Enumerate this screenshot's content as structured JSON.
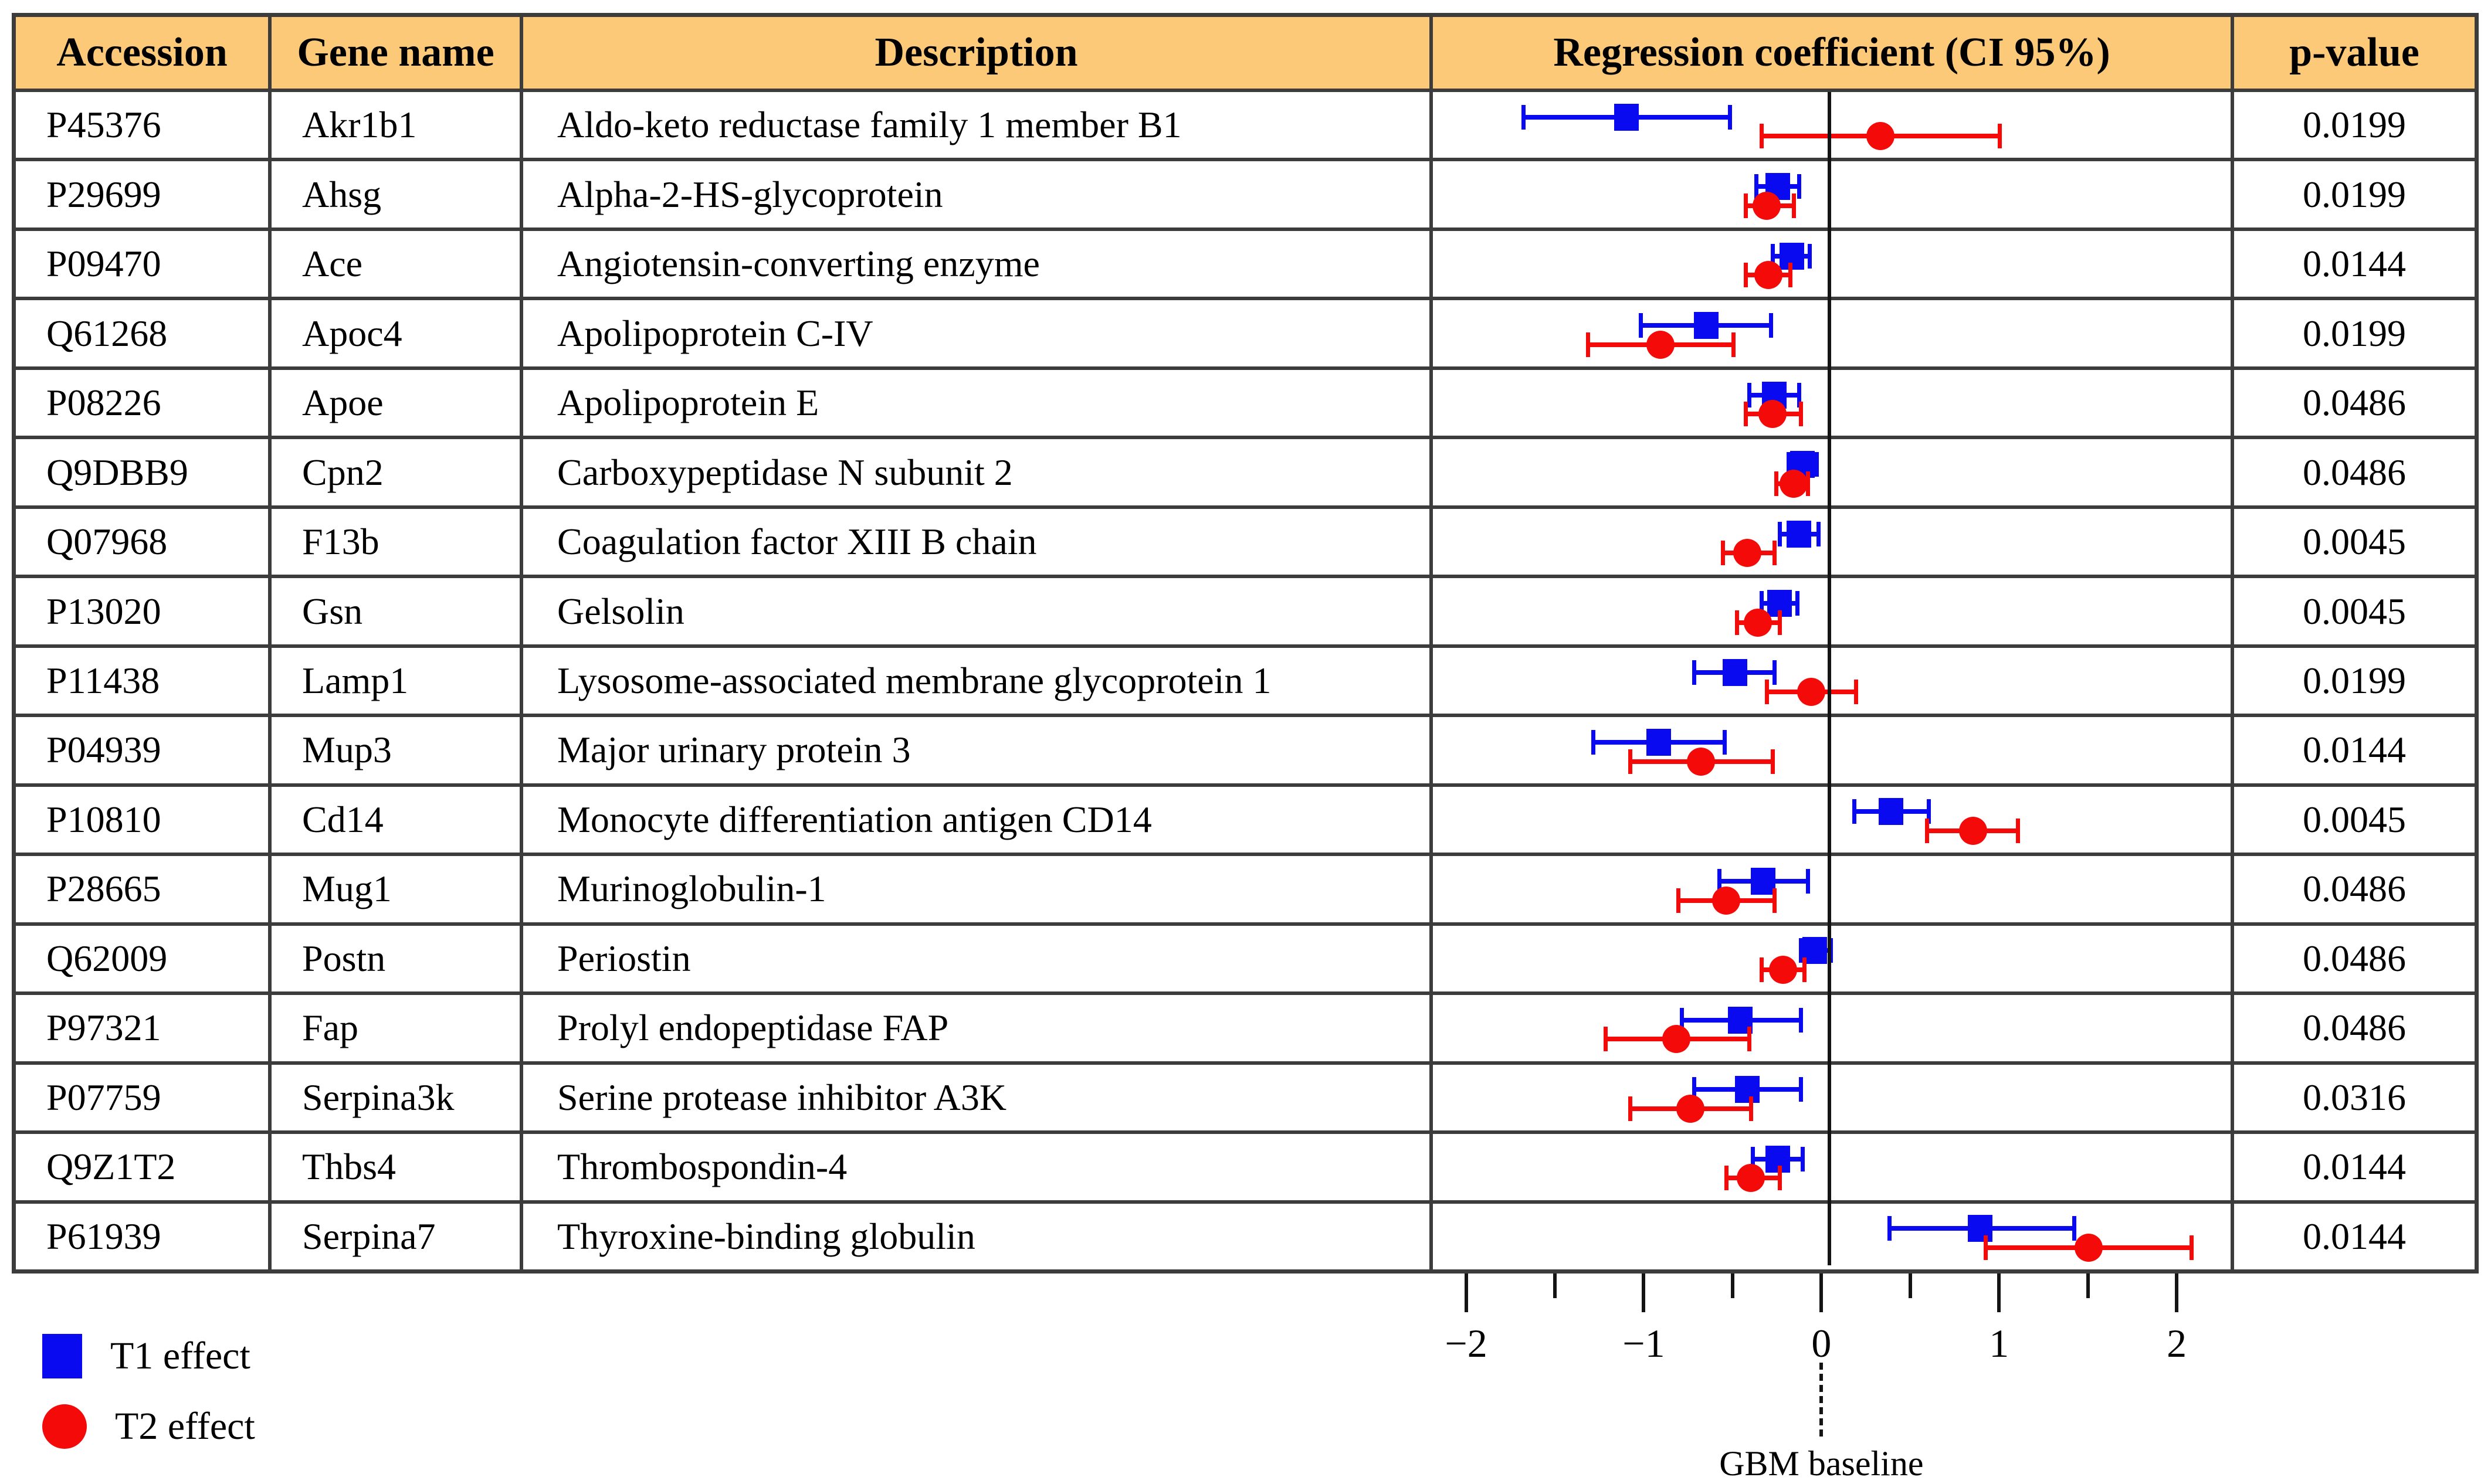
{
  "colors": {
    "t1": "#0a0af0",
    "t2": "#f50a0a",
    "header_bg": "#FCC978",
    "grid_border": "#3c3c3c",
    "axis_ink": "#141414"
  },
  "table": {
    "headers": [
      "Accession",
      "Gene name",
      "Description",
      "Regression coefficient (CI 95%)",
      "p-value"
    ],
    "rows": [
      {
        "accession": "P45376",
        "gene": "Akr1b1",
        "description": "Aldo-keto reductase family 1 member B1",
        "pvalue": "0.0199",
        "t1": {
          "lo": -1.68,
          "mid": -1.1,
          "hi": -0.52
        },
        "t2": {
          "lo": -0.34,
          "mid": 0.33,
          "hi": 1.0
        }
      },
      {
        "accession": "P29699",
        "gene": "Ahsg",
        "description": "Alpha-2-HS-glycoprotein",
        "pvalue": "0.0199",
        "t1": {
          "lo": -0.37,
          "mid": -0.25,
          "hi": -0.13
        },
        "t2": {
          "lo": -0.43,
          "mid": -0.31,
          "hi": -0.16
        }
      },
      {
        "accession": "P09470",
        "gene": "Ace",
        "description": "Angiotensin-converting enzyme",
        "pvalue": "0.0144",
        "t1": {
          "lo": -0.28,
          "mid": -0.17,
          "hi": -0.07
        },
        "t2": {
          "lo": -0.43,
          "mid": -0.3,
          "hi": -0.18
        }
      },
      {
        "accession": "Q61268",
        "gene": "Apoc4",
        "description": "Apolipoprotein C-IV",
        "pvalue": "0.0199",
        "t1": {
          "lo": -1.02,
          "mid": -0.65,
          "hi": -0.29
        },
        "t2": {
          "lo": -1.32,
          "mid": -0.91,
          "hi": -0.5
        }
      },
      {
        "accession": "P08226",
        "gene": "Apoe",
        "description": "Apolipoprotein E",
        "pvalue": "0.0486",
        "t1": {
          "lo": -0.41,
          "mid": -0.27,
          "hi": -0.13
        },
        "t2": {
          "lo": -0.43,
          "mid": -0.28,
          "hi": -0.12
        }
      },
      {
        "accession": "Q9DBB9",
        "gene": "Cpn2",
        "description": "Carboxypeptidase N subunit 2",
        "pvalue": "0.0486",
        "t1": {
          "lo": -0.19,
          "mid": -0.11,
          "hi": -0.03
        },
        "t2": {
          "lo": -0.26,
          "mid": -0.16,
          "hi": -0.08
        }
      },
      {
        "accession": "Q07968",
        "gene": "F13b",
        "description": "Coagulation factor XIII B chain",
        "pvalue": "0.0045",
        "t1": {
          "lo": -0.24,
          "mid": -0.13,
          "hi": -0.02
        },
        "t2": {
          "lo": -0.56,
          "mid": -0.42,
          "hi": -0.27
        }
      },
      {
        "accession": "P13020",
        "gene": "Gsn",
        "description": "Gelsolin",
        "pvalue": "0.0045",
        "t1": {
          "lo": -0.34,
          "mid": -0.24,
          "hi": -0.14
        },
        "t2": {
          "lo": -0.48,
          "mid": -0.36,
          "hi": -0.24
        }
      },
      {
        "accession": "P11438",
        "gene": "Lamp1",
        "description": "Lysosome-associated membrane glycoprotein 1",
        "pvalue": "0.0199",
        "t1": {
          "lo": -0.72,
          "mid": -0.49,
          "hi": -0.27
        },
        "t2": {
          "lo": -0.31,
          "mid": -0.06,
          "hi": 0.19
        }
      },
      {
        "accession": "P04939",
        "gene": "Mup3",
        "description": "Major urinary protein 3",
        "pvalue": "0.0144",
        "t1": {
          "lo": -1.29,
          "mid": -0.92,
          "hi": -0.55
        },
        "t2": {
          "lo": -1.08,
          "mid": -0.68,
          "hi": -0.28
        }
      },
      {
        "accession": "P10810",
        "gene": "Cd14",
        "description": "Monocyte differentiation antigen CD14",
        "pvalue": "0.0045",
        "t1": {
          "lo": 0.18,
          "mid": 0.39,
          "hi": 0.6
        },
        "t2": {
          "lo": 0.59,
          "mid": 0.85,
          "hi": 1.1
        }
      },
      {
        "accession": "P28665",
        "gene": "Mug1",
        "description": "Murinoglobulin-1",
        "pvalue": "0.0486",
        "t1": {
          "lo": -0.58,
          "mid": -0.33,
          "hi": -0.08
        },
        "t2": {
          "lo": -0.81,
          "mid": -0.54,
          "hi": -0.27
        }
      },
      {
        "accession": "Q62009",
        "gene": "Postn",
        "description": "Periostin",
        "pvalue": "0.0486",
        "t1": {
          "lo": -0.12,
          "mid": -0.04,
          "hi": 0.05
        },
        "t2": {
          "lo": -0.34,
          "mid": -0.22,
          "hi": -0.1
        }
      },
      {
        "accession": "P97321",
        "gene": "Fap",
        "description": "Prolyl endopeptidase FAP",
        "pvalue": "0.0486",
        "t1": {
          "lo": -0.79,
          "mid": -0.46,
          "hi": -0.12
        },
        "t2": {
          "lo": -1.22,
          "mid": -0.82,
          "hi": -0.41
        }
      },
      {
        "accession": "P07759",
        "gene": "Serpina3k",
        "description": "Serine protease inhibitor A3K",
        "pvalue": "0.0316",
        "t1": {
          "lo": -0.72,
          "mid": -0.42,
          "hi": -0.12
        },
        "t2": {
          "lo": -1.08,
          "mid": -0.74,
          "hi": -0.4
        }
      },
      {
        "accession": "Q9Z1T2",
        "gene": "Thbs4",
        "description": "Thrombospondin-4",
        "pvalue": "0.0144",
        "t1": {
          "lo": -0.39,
          "mid": -0.25,
          "hi": -0.11
        },
        "t2": {
          "lo": -0.54,
          "mid": -0.4,
          "hi": -0.24
        }
      },
      {
        "accession": "P61939",
        "gene": "Serpina7",
        "description": "Thyroxine-binding globulin",
        "pvalue": "0.0144",
        "t1": {
          "lo": 0.38,
          "mid": 0.89,
          "hi": 1.42
        },
        "t2": {
          "lo": 0.92,
          "mid": 1.5,
          "hi": 2.08
        }
      }
    ]
  },
  "axis": {
    "min": -2.19,
    "max": 2.3,
    "major_ticks": [
      -2,
      -1,
      0,
      1,
      2
    ],
    "minor_ticks": [
      -1.5,
      -0.5,
      0.5,
      1.5
    ],
    "zero_value": 0,
    "baseline_label": "GBM baseline"
  },
  "legend": [
    {
      "label": "T1 effect",
      "marker": "square",
      "color_key": "t1"
    },
    {
      "label": "T2 effect",
      "marker": "circle",
      "color_key": "t2"
    }
  ],
  "chart_data": {
    "type": "scatter",
    "subtype": "forest-plot-with-table",
    "title": "Regression coefficient (CI 95%)",
    "xlabel": "Regression coefficient",
    "xlim": [
      -2.19,
      2.3
    ],
    "x_major_ticks": [
      -2,
      -1,
      0,
      1,
      2
    ],
    "reference_line": {
      "x": 0,
      "label": "GBM baseline"
    },
    "grid": "off",
    "legend_position": "bottom-left",
    "categories": [
      "Akr1b1",
      "Ahsg",
      "Ace",
      "Apoc4",
      "Apoe",
      "Cpn2",
      "F13b",
      "Gsn",
      "Lamp1",
      "Mup3",
      "Cd14",
      "Mug1",
      "Postn",
      "Fap",
      "Serpina3k",
      "Thbs4",
      "Serpina7"
    ],
    "accessions": [
      "P45376",
      "P29699",
      "P09470",
      "Q61268",
      "P08226",
      "Q9DBB9",
      "Q07968",
      "P13020",
      "P11438",
      "P04939",
      "P10810",
      "P28665",
      "Q62009",
      "P97321",
      "P07759",
      "Q9Z1T2",
      "P61939"
    ],
    "descriptions": [
      "Aldo-keto reductase family 1 member B1",
      "Alpha-2-HS-glycoprotein",
      "Angiotensin-converting enzyme",
      "Apolipoprotein C-IV",
      "Apolipoprotein E",
      "Carboxypeptidase N subunit 2",
      "Coagulation factor XIII B chain",
      "Gelsolin",
      "Lysosome-associated membrane glycoprotein 1",
      "Major urinary protein 3",
      "Monocyte differentiation antigen CD14",
      "Murinoglobulin-1",
      "Periostin",
      "Prolyl endopeptidase FAP",
      "Serine protease inhibitor A3K",
      "Thrombospondin-4",
      "Thyroxine-binding globulin"
    ],
    "p_values": [
      0.0199,
      0.0199,
      0.0144,
      0.0199,
      0.0486,
      0.0486,
      0.0045,
      0.0045,
      0.0199,
      0.0144,
      0.0045,
      0.0486,
      0.0486,
      0.0486,
      0.0316,
      0.0144,
      0.0144
    ],
    "series": [
      {
        "name": "T1 effect",
        "marker": "square",
        "color": "#0a0af0",
        "values": [
          -1.1,
          -0.25,
          -0.17,
          -0.65,
          -0.27,
          -0.11,
          -0.13,
          -0.24,
          -0.49,
          -0.92,
          0.39,
          -0.33,
          -0.04,
          -0.46,
          -0.42,
          -0.25,
          0.89
        ],
        "ci_low": [
          -1.68,
          -0.37,
          -0.28,
          -1.02,
          -0.41,
          -0.19,
          -0.24,
          -0.34,
          -0.72,
          -1.29,
          0.18,
          -0.58,
          -0.12,
          -0.79,
          -0.72,
          -0.39,
          0.38
        ],
        "ci_high": [
          -0.52,
          -0.13,
          -0.07,
          -0.29,
          -0.13,
          -0.03,
          -0.02,
          -0.14,
          -0.27,
          -0.55,
          0.6,
          -0.08,
          0.05,
          -0.12,
          -0.12,
          -0.11,
          1.42
        ]
      },
      {
        "name": "T2 effect",
        "marker": "circle",
        "color": "#f50a0a",
        "values": [
          0.33,
          -0.31,
          -0.3,
          -0.91,
          -0.28,
          -0.16,
          -0.42,
          -0.36,
          -0.06,
          -0.68,
          0.85,
          -0.54,
          -0.22,
          -0.82,
          -0.74,
          -0.4,
          1.5
        ],
        "ci_low": [
          -0.34,
          -0.43,
          -0.43,
          -1.32,
          -0.43,
          -0.26,
          -0.56,
          -0.48,
          -0.31,
          -1.08,
          0.59,
          -0.81,
          -0.34,
          -1.22,
          -1.08,
          -0.54,
          0.92
        ],
        "ci_high": [
          1.0,
          -0.16,
          -0.18,
          -0.5,
          -0.12,
          -0.08,
          -0.27,
          -0.24,
          0.19,
          -0.28,
          1.1,
          -0.27,
          -0.1,
          -0.41,
          -0.4,
          -0.24,
          2.08
        ]
      }
    ]
  }
}
